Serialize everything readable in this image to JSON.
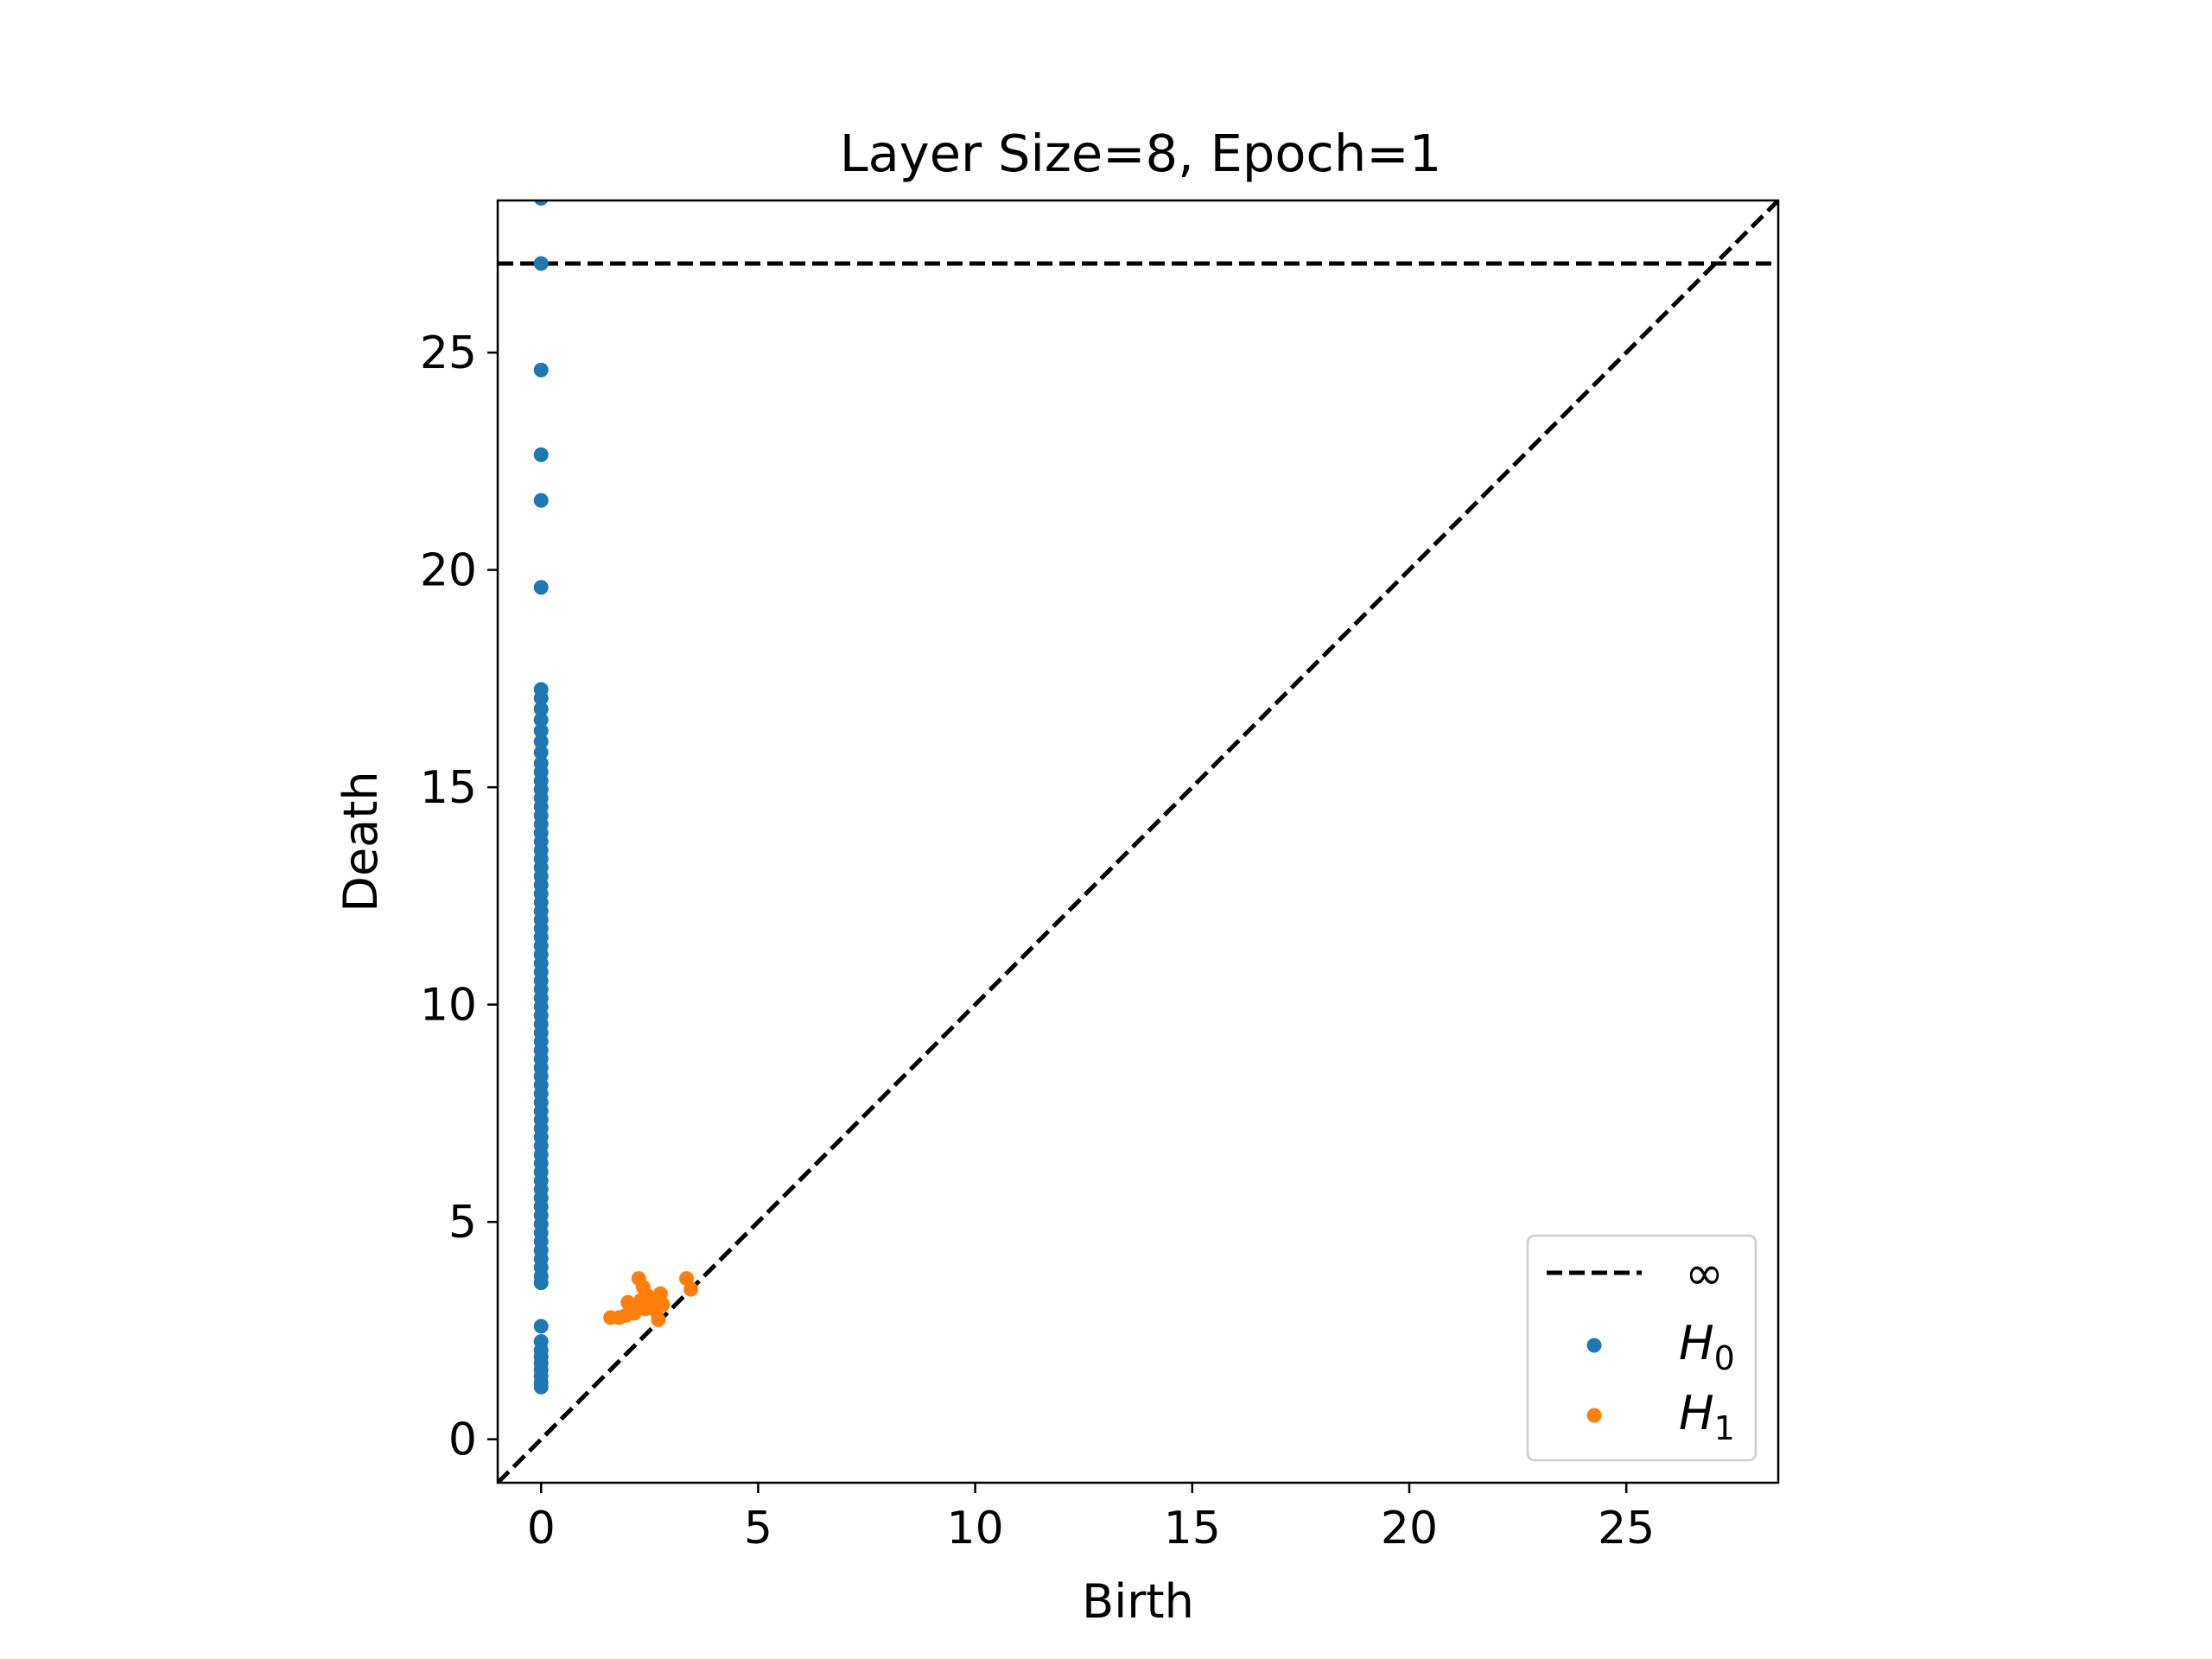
{
  "chart_data": {
    "type": "scatter",
    "title": "Layer Size=8, Epoch=1",
    "xlabel": "Birth",
    "ylabel": "Death",
    "xlim": [
      -1.0,
      28.5
    ],
    "ylim": [
      -1.0,
      28.5
    ],
    "xticks": [
      0,
      5,
      10,
      15,
      20,
      25
    ],
    "yticks": [
      0,
      5,
      10,
      15,
      20,
      25
    ],
    "legend_position": "bottom-right",
    "infinity_line": {
      "label": "∞",
      "y": 27.05,
      "color": "#000000",
      "style": "dashed"
    },
    "diagonal": {
      "from": [
        -1.0,
        -1.0
      ],
      "to": [
        28.5,
        28.5
      ],
      "color": "#000000",
      "style": "dashed"
    },
    "series": [
      {
        "name": "H",
        "subscript": "0",
        "color": "#1f77b4",
        "points": [
          [
            0,
            28.55
          ],
          [
            0,
            27.05
          ],
          [
            0,
            24.6
          ],
          [
            0,
            22.65
          ],
          [
            0,
            21.6
          ],
          [
            0,
            19.6
          ],
          [
            0,
            17.25
          ],
          [
            0,
            17.05
          ],
          [
            0,
            16.8
          ],
          [
            0,
            16.55
          ],
          [
            0,
            16.3
          ],
          [
            0,
            16.05
          ],
          [
            0,
            15.8
          ],
          [
            0,
            15.55
          ],
          [
            0,
            15.35
          ],
          [
            0,
            15.15
          ],
          [
            0,
            14.95
          ],
          [
            0,
            14.75
          ],
          [
            0,
            14.55
          ],
          [
            0,
            14.35
          ],
          [
            0,
            14.15
          ],
          [
            0,
            13.95
          ],
          [
            0,
            13.75
          ],
          [
            0,
            13.55
          ],
          [
            0,
            13.35
          ],
          [
            0,
            13.15
          ],
          [
            0,
            12.95
          ],
          [
            0,
            12.75
          ],
          [
            0,
            12.55
          ],
          [
            0,
            12.35
          ],
          [
            0,
            12.15
          ],
          [
            0,
            11.95
          ],
          [
            0,
            11.75
          ],
          [
            0,
            11.55
          ],
          [
            0,
            11.35
          ],
          [
            0,
            11.15
          ],
          [
            0,
            10.95
          ],
          [
            0,
            10.75
          ],
          [
            0,
            10.55
          ],
          [
            0,
            10.35
          ],
          [
            0,
            10.15
          ],
          [
            0,
            9.95
          ],
          [
            0,
            9.75
          ],
          [
            0,
            9.55
          ],
          [
            0,
            9.35
          ],
          [
            0,
            9.15
          ],
          [
            0,
            8.95
          ],
          [
            0,
            8.75
          ],
          [
            0,
            8.55
          ],
          [
            0,
            8.35
          ],
          [
            0,
            8.15
          ],
          [
            0,
            7.95
          ],
          [
            0,
            7.75
          ],
          [
            0,
            7.55
          ],
          [
            0,
            7.35
          ],
          [
            0,
            7.15
          ],
          [
            0,
            6.95
          ],
          [
            0,
            6.75
          ],
          [
            0,
            6.55
          ],
          [
            0,
            6.35
          ],
          [
            0,
            6.15
          ],
          [
            0,
            5.95
          ],
          [
            0,
            5.75
          ],
          [
            0,
            5.55
          ],
          [
            0,
            5.35
          ],
          [
            0,
            5.15
          ],
          [
            0,
            4.95
          ],
          [
            0,
            4.75
          ],
          [
            0,
            4.55
          ],
          [
            0,
            4.35
          ],
          [
            0,
            4.15
          ],
          [
            0,
            3.95
          ],
          [
            0,
            3.75
          ],
          [
            0,
            3.6
          ],
          [
            0,
            2.6
          ],
          [
            0,
            2.25
          ],
          [
            0,
            2.05
          ],
          [
            0,
            1.9
          ],
          [
            0,
            1.75
          ],
          [
            0,
            1.6
          ],
          [
            0,
            1.45
          ],
          [
            0,
            1.3
          ],
          [
            0,
            1.2
          ]
        ]
      },
      {
        "name": "H",
        "subscript": "1",
        "color": "#ff7f0e",
        "points": [
          [
            1.6,
            2.8
          ],
          [
            1.8,
            2.8
          ],
          [
            1.95,
            2.85
          ],
          [
            2.0,
            3.15
          ],
          [
            2.1,
            3.05
          ],
          [
            2.15,
            2.9
          ],
          [
            2.25,
            3.7
          ],
          [
            2.3,
            3.2
          ],
          [
            2.35,
            3.5
          ],
          [
            2.4,
            3.0
          ],
          [
            2.45,
            3.3
          ],
          [
            2.55,
            3.05
          ],
          [
            2.6,
            3.2
          ],
          [
            2.65,
            2.95
          ],
          [
            2.7,
            2.75
          ],
          [
            2.75,
            3.35
          ],
          [
            2.8,
            3.1
          ],
          [
            3.35,
            3.7
          ],
          [
            3.45,
            3.45
          ]
        ]
      }
    ]
  }
}
